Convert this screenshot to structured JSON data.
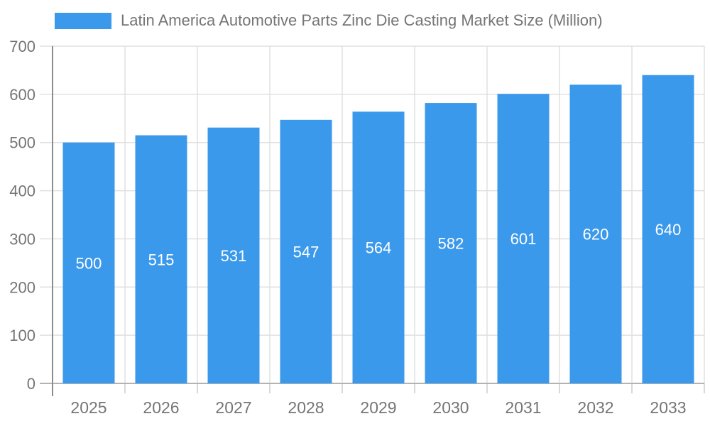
{
  "chart": {
    "legend_label": "Latin America Automotive Parts Zinc Die Casting Market Size (Million)"
  },
  "chart_data": {
    "type": "bar",
    "title": "Latin America Automotive Parts Zinc Die Casting Market Size (Million)",
    "categories": [
      "2025",
      "2026",
      "2027",
      "2028",
      "2029",
      "2030",
      "2031",
      "2032",
      "2033"
    ],
    "values": [
      500,
      515,
      531,
      547,
      564,
      582,
      601,
      620,
      640
    ],
    "xlabel": "",
    "ylabel": "",
    "ylim": [
      0,
      700
    ],
    "yticks": [
      0,
      100,
      200,
      300,
      400,
      500,
      600,
      700
    ],
    "grid": true,
    "legend_position": "top-left",
    "value_labels": "inside-center",
    "colors": {
      "bar": "#3b99ec",
      "value_label": "#ffffff",
      "axis_text": "#757575",
      "grid_line": "#e0e0e0",
      "y_axis_line": "#8c8c8c",
      "baseline": "#b3b3b3",
      "tick": "#cccccc",
      "background": "#ffffff"
    }
  }
}
